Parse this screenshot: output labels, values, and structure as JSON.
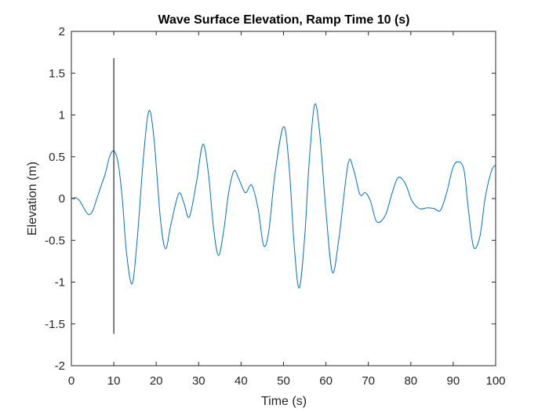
{
  "chart_data": {
    "type": "line",
    "title": "Wave Surface Elevation, Ramp Time 10 (s)",
    "xlabel": "Time (s)",
    "ylabel": "Elevation (m)",
    "xlim": [
      0,
      100
    ],
    "ylim": [
      -2,
      2
    ],
    "xticks": [
      0,
      10,
      20,
      30,
      40,
      50,
      60,
      70,
      80,
      90,
      100
    ],
    "xtick_labels": [
      "0",
      "10",
      "20",
      "30",
      "40",
      "50",
      "60",
      "70",
      "80",
      "90",
      "100"
    ],
    "yticks": [
      -2,
      -1.5,
      -1,
      -0.5,
      0,
      0.5,
      1,
      1.5,
      2
    ],
    "ytick_labels": [
      "-2",
      "-1.5",
      "-1",
      "-0.5",
      "0",
      "0.5",
      "1",
      "1.5",
      "2"
    ],
    "grid": false,
    "series": [
      {
        "color": "#0072BD",
        "x": [
          0,
          1,
          2,
          3,
          4,
          5,
          6,
          7,
          8,
          9,
          10,
          11,
          12,
          13,
          14.3,
          15.5,
          17,
          18.3,
          19.5,
          21,
          22.2,
          23.5,
          25.3,
          26.5,
          27.8,
          29.5,
          31,
          32.3,
          33.5,
          34.7,
          36,
          37,
          38.3,
          39.5,
          41,
          42.5,
          44,
          45.3,
          46.5,
          48,
          50,
          51.3,
          52.5,
          53.7,
          55,
          56,
          57.3,
          58.5,
          60,
          61.5,
          63,
          65.2,
          66.5,
          68,
          69.3,
          70.5,
          72,
          74,
          75.5,
          77,
          78.7,
          80.2,
          82,
          84,
          85.5,
          87,
          88.5,
          89.8,
          91,
          92.5,
          93.5,
          94.8,
          96.3,
          97.5,
          99,
          100
        ],
        "y": [
          0,
          0.01,
          -0.03,
          -0.12,
          -0.19,
          -0.15,
          0.0,
          0.15,
          0.3,
          0.5,
          0.57,
          0.43,
          0.0,
          -0.65,
          -1.02,
          -0.5,
          0.5,
          1.05,
          0.7,
          -0.25,
          -0.6,
          -0.3,
          0.06,
          -0.05,
          -0.22,
          0.2,
          0.65,
          0.3,
          -0.35,
          -0.68,
          -0.35,
          0.05,
          0.33,
          0.23,
          0.07,
          0.16,
          -0.12,
          -0.56,
          -0.4,
          0.3,
          0.86,
          0.4,
          -0.55,
          -1.07,
          -0.45,
          0.4,
          1.12,
          0.8,
          -0.15,
          -0.88,
          -0.5,
          0.41,
          0.35,
          0.05,
          0.07,
          -0.03,
          -0.28,
          -0.2,
          0.05,
          0.25,
          0.18,
          -0.02,
          -0.12,
          -0.11,
          -0.12,
          -0.14,
          0.08,
          0.35,
          0.44,
          0.35,
          -0.1,
          -0.58,
          -0.45,
          0.0,
          0.33,
          0.4
        ]
      },
      {
        "color": "#000000",
        "x": [
          10,
          10
        ],
        "y": [
          -1.62,
          1.68
        ]
      }
    ]
  }
}
